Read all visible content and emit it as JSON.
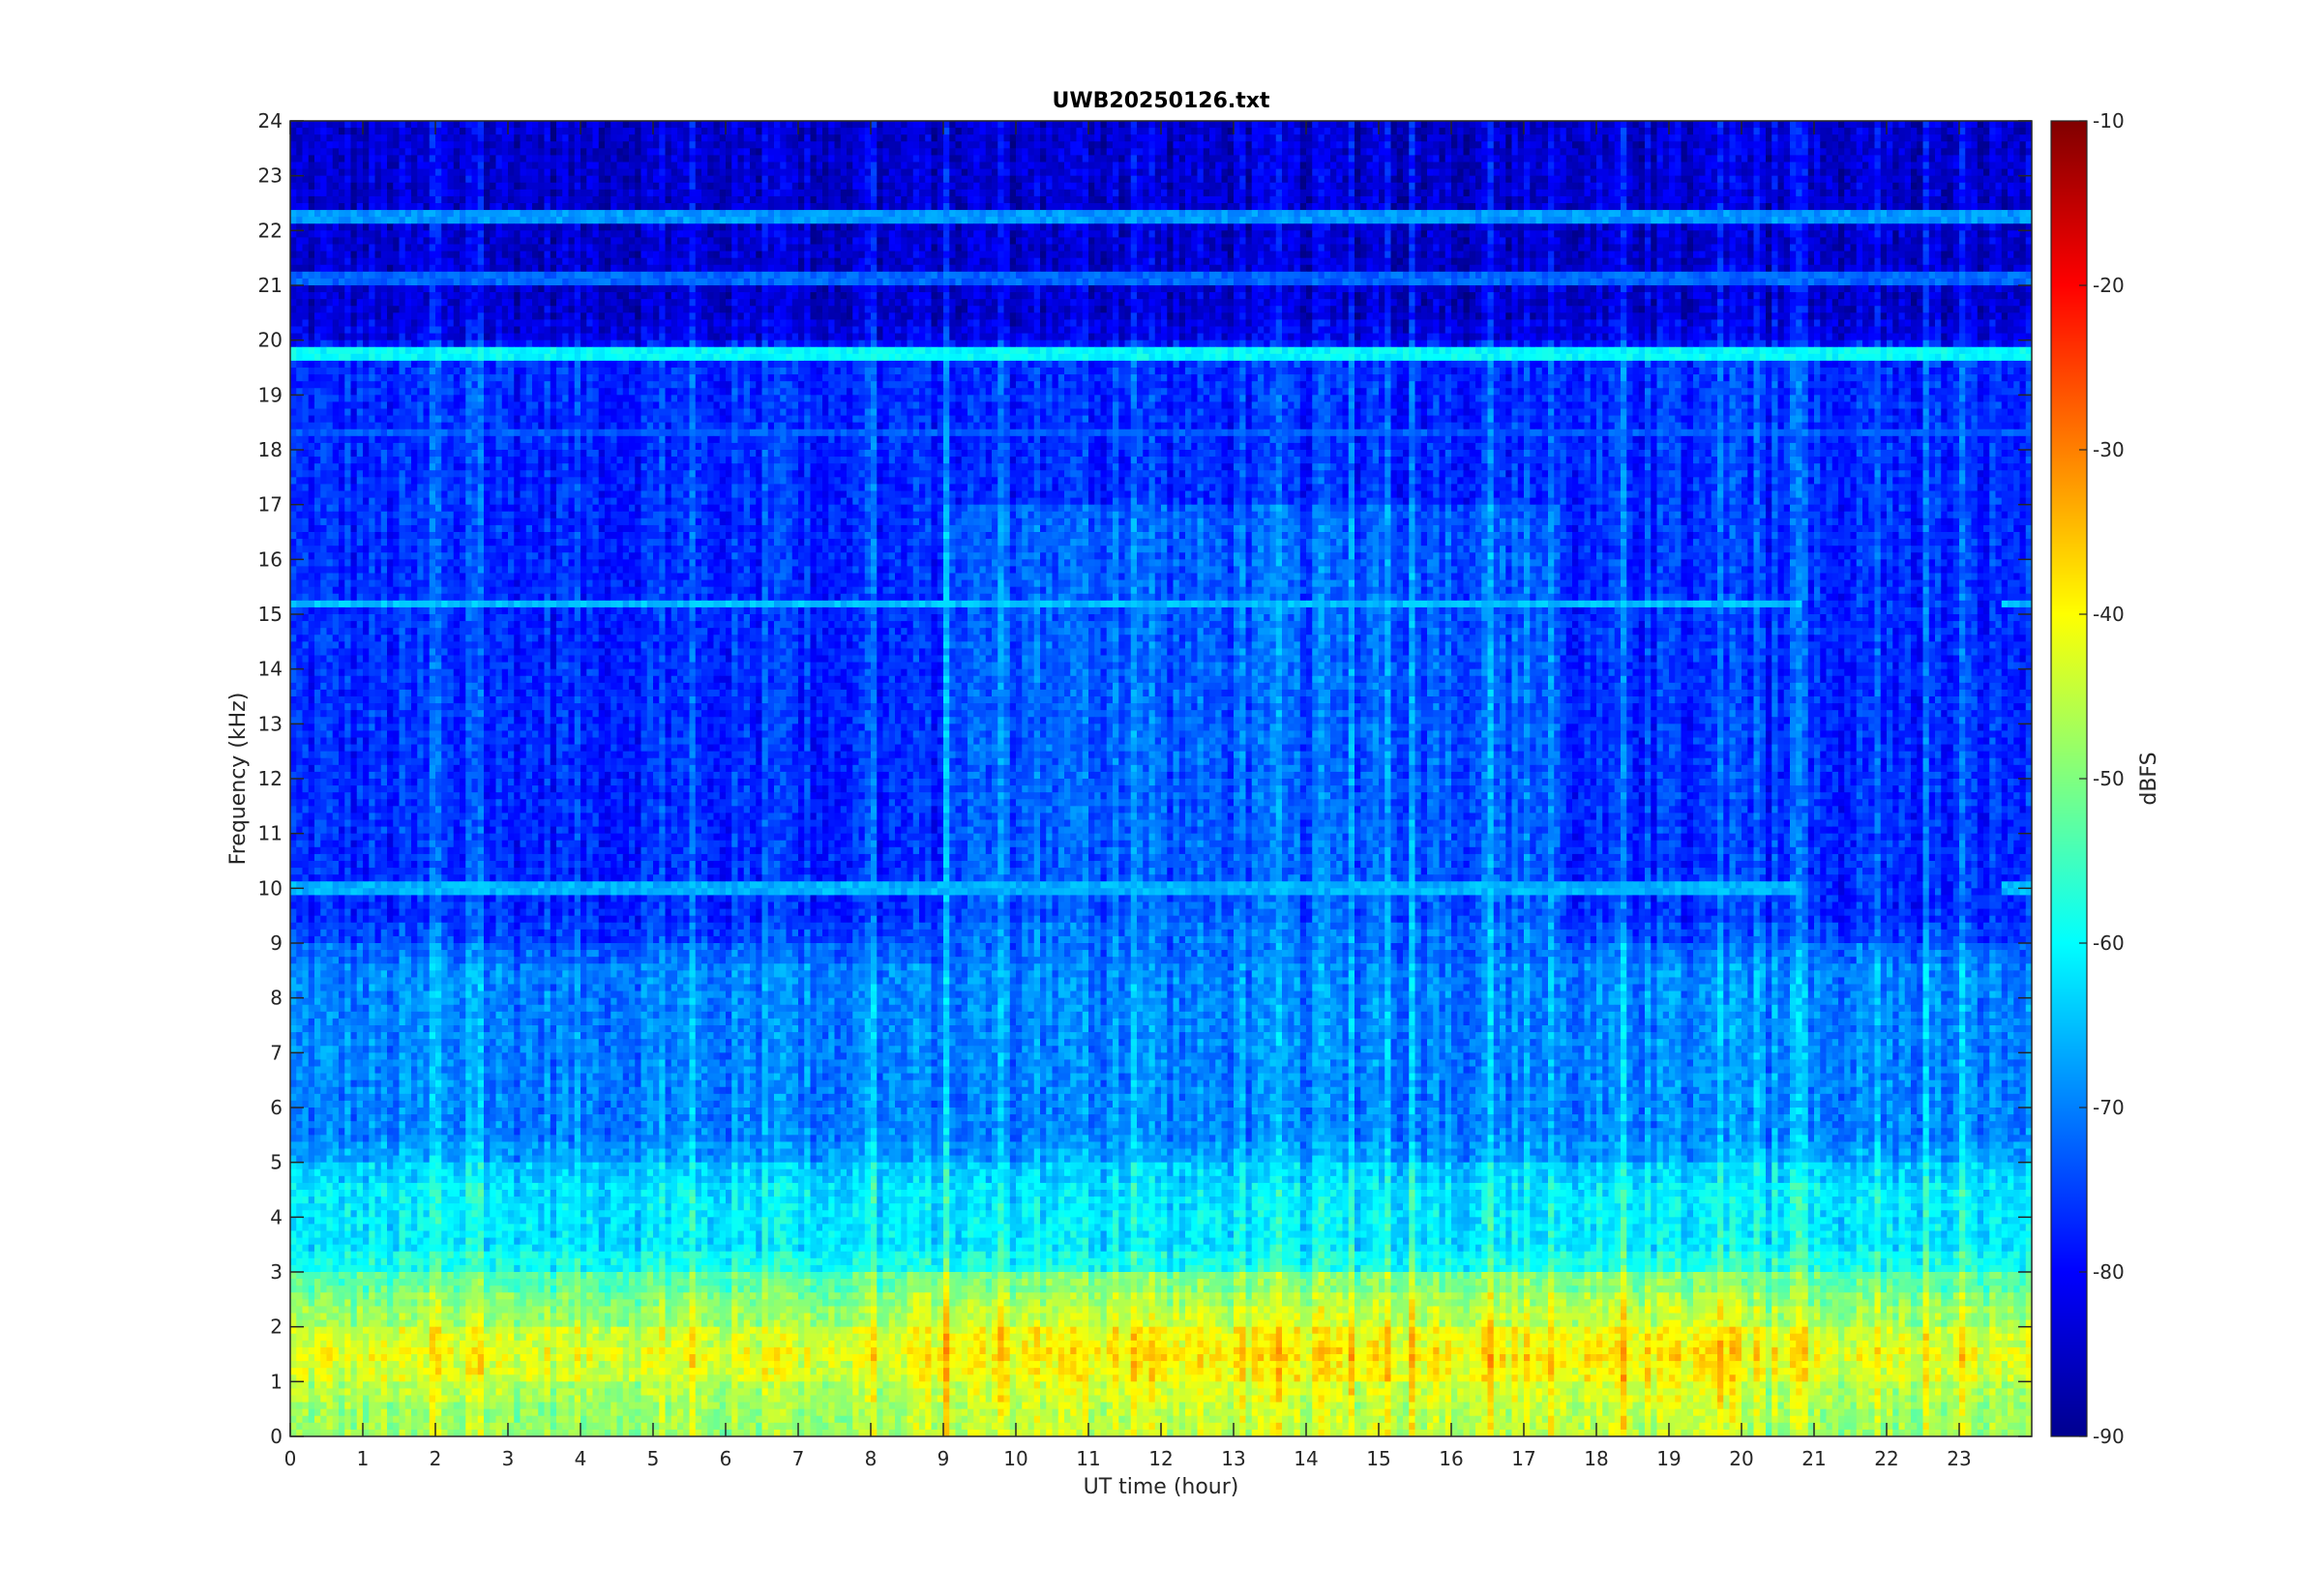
{
  "chart_data": {
    "type": "heatmap",
    "title": "UWB20250126.txt",
    "xlabel": "UT time (hour)",
    "ylabel": "Frequency (kHz)",
    "xlim": [
      0,
      24
    ],
    "ylim": [
      0,
      24
    ],
    "x_ticks": [
      "0",
      "1",
      "2",
      "3",
      "4",
      "5",
      "6",
      "7",
      "8",
      "9",
      "10",
      "11",
      "12",
      "13",
      "14",
      "15",
      "16",
      "17",
      "18",
      "19",
      "20",
      "21",
      "22",
      "23"
    ],
    "y_ticks": [
      "0",
      "1",
      "2",
      "3",
      "4",
      "5",
      "6",
      "7",
      "8",
      "9",
      "10",
      "11",
      "12",
      "13",
      "14",
      "15",
      "16",
      "17",
      "18",
      "19",
      "20",
      "21",
      "22",
      "23",
      "24"
    ],
    "colorbar": {
      "label": "dBFS",
      "range": [
        -90,
        -10
      ],
      "ticks": [
        "-10",
        "-20",
        "-30",
        "-40",
        "-50",
        "-60",
        "-70",
        "-80",
        "-90"
      ],
      "colormap": "jet"
    },
    "background_level_dbfs": {
      "0-1 kHz": -48,
      "1-2 kHz": -42,
      "2-3 kHz": -50,
      "3-5 kHz": -62,
      "5-9 kHz": -70,
      "9-20 kHz": -77,
      "20-24 kHz": -84
    },
    "persistent_lines_khz": [
      {
        "freq": 19.75,
        "level_dbfs": -60
      },
      {
        "freq": 22.25,
        "level_dbfs": -68
      },
      {
        "freq": 21.1,
        "level_dbfs": -72
      },
      {
        "freq": 18.3,
        "level_dbfs": -73
      },
      {
        "freq": 15.2,
        "level_dbfs": -65
      },
      {
        "freq": 10.0,
        "level_dbfs": -66
      }
    ],
    "grid": false,
    "colors": {
      "axes_edge": "#262626",
      "text": "#262626"
    }
  }
}
